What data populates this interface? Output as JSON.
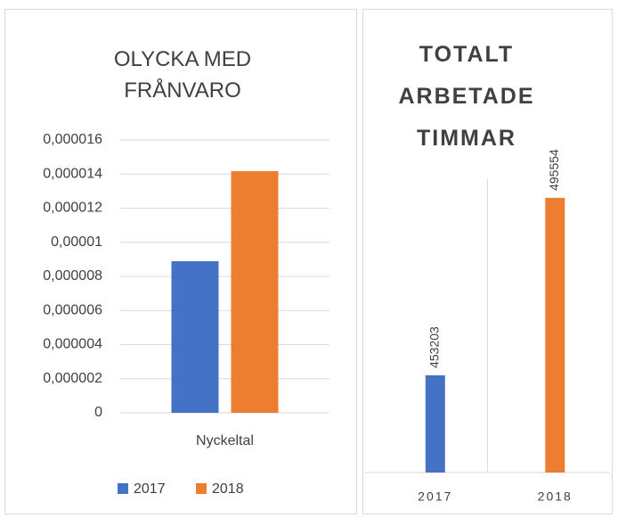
{
  "chart_data": [
    {
      "type": "bar",
      "title": "OLYCKA MED FRÅNVARO",
      "categories": [
        "Nyckeltal"
      ],
      "series": [
        {
          "name": "2017",
          "color": "#4472c4",
          "values": [
            8.89e-06
          ]
        },
        {
          "name": "2018",
          "color": "#ed7d31",
          "values": [
            1.417e-05
          ]
        }
      ],
      "ylim": [
        0,
        1.6e-05
      ],
      "yticks": [
        0,
        {
          "value": 2e-06,
          "label": "0,000002"
        },
        {
          "value": 4e-06,
          "label": "0,000004"
        },
        {
          "value": 6e-06,
          "label": "0,000006"
        },
        {
          "value": 8e-06,
          "label": "0,000008"
        },
        {
          "value": 1e-05,
          "label": "0,00001"
        },
        {
          "value": 1.2e-05,
          "label": "0,000012"
        },
        {
          "value": 1.4e-05,
          "label": "0,000014"
        },
        {
          "value": 1.6e-05,
          "label": "0,000016"
        }
      ],
      "grid": true,
      "legend": "bottom"
    },
    {
      "type": "bar",
      "title": "TOTALT ARBETADE TIMMAR",
      "categories": [
        "2017",
        "2018"
      ],
      "values": [
        453203,
        495554
      ],
      "colors": [
        "#4472c4",
        "#ed7d31"
      ],
      "ylim": [
        430000,
        500000
      ]
    }
  ]
}
